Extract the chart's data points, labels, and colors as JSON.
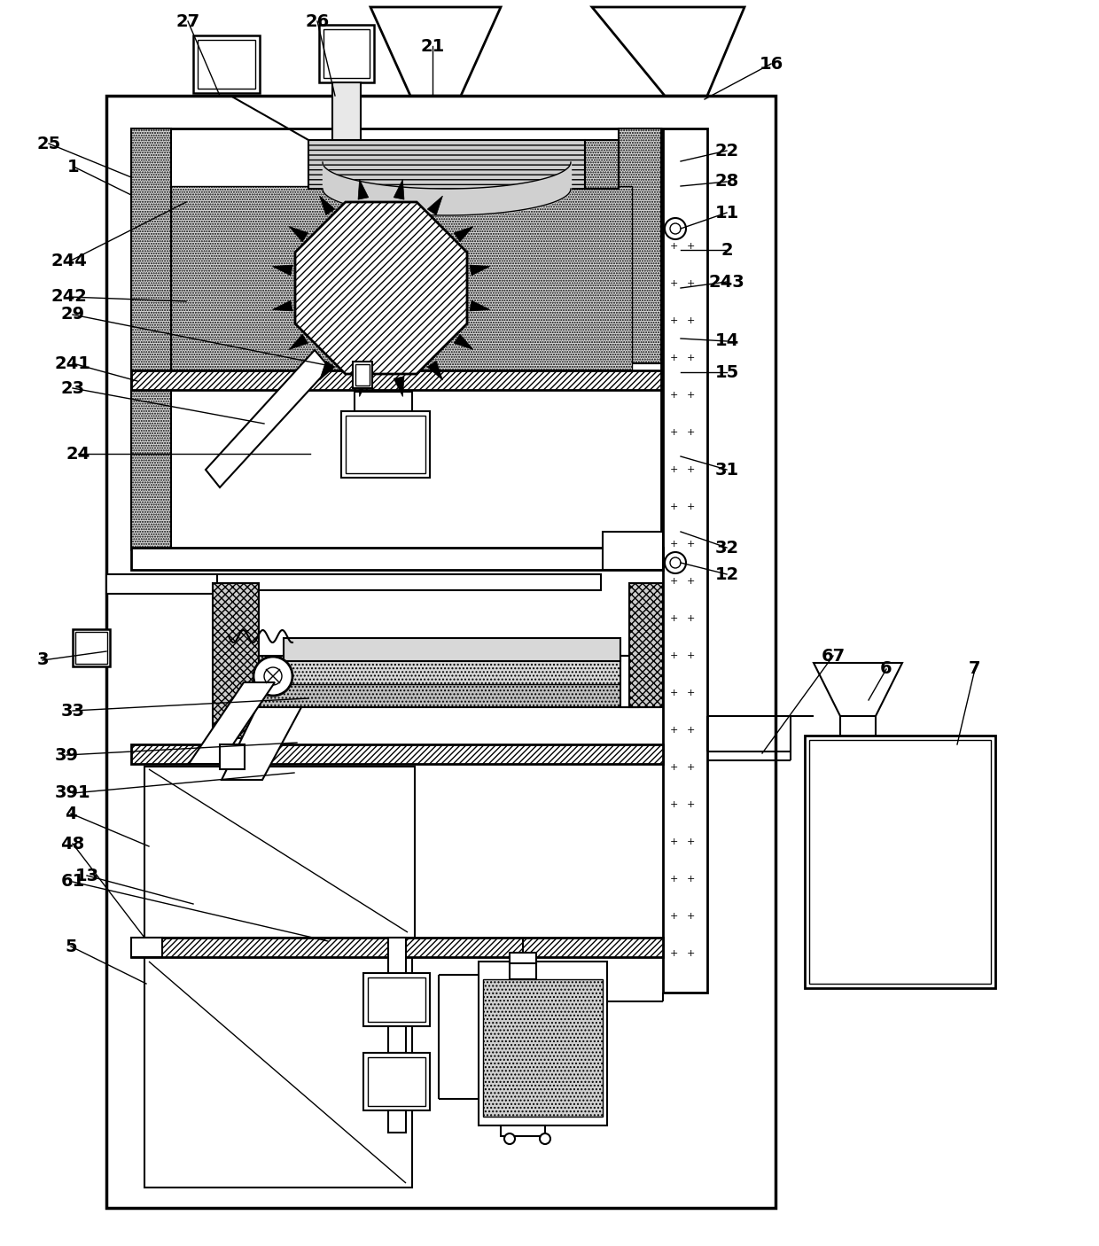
{
  "bg_color": "#ffffff",
  "line_color": "#000000",
  "figsize": [
    12.4,
    14.06
  ],
  "dpi": 100,
  "label_data": [
    [
      "1",
      83,
      188,
      148,
      220
    ],
    [
      "2",
      820,
      282,
      768,
      282
    ],
    [
      "3",
      48,
      745,
      120,
      735
    ],
    [
      "4",
      80,
      918,
      168,
      955
    ],
    [
      "5",
      80,
      1068,
      165,
      1110
    ],
    [
      "6",
      1000,
      755,
      980,
      790
    ],
    [
      "7",
      1100,
      755,
      1080,
      840
    ],
    [
      "11",
      820,
      240,
      768,
      258
    ],
    [
      "12",
      820,
      648,
      768,
      635
    ],
    [
      "13",
      98,
      988,
      218,
      1020
    ],
    [
      "14",
      820,
      385,
      768,
      382
    ],
    [
      "15",
      820,
      420,
      768,
      420
    ],
    [
      "16",
      870,
      72,
      795,
      112
    ],
    [
      "21",
      488,
      52,
      488,
      108
    ],
    [
      "22",
      820,
      170,
      768,
      182
    ],
    [
      "23",
      82,
      438,
      298,
      478
    ],
    [
      "24",
      88,
      512,
      350,
      512
    ],
    [
      "25",
      55,
      162,
      148,
      200
    ],
    [
      "26",
      358,
      24,
      378,
      108
    ],
    [
      "27",
      212,
      24,
      248,
      108
    ],
    [
      "28",
      820,
      205,
      768,
      210
    ],
    [
      "29",
      82,
      355,
      368,
      412
    ],
    [
      "31",
      820,
      530,
      768,
      515
    ],
    [
      "32",
      820,
      618,
      768,
      600
    ],
    [
      "33",
      82,
      802,
      348,
      788
    ],
    [
      "39",
      75,
      852,
      335,
      838
    ],
    [
      "391",
      82,
      895,
      332,
      872
    ],
    [
      "48",
      82,
      952,
      163,
      1058
    ],
    [
      "61",
      82,
      995,
      370,
      1062
    ],
    [
      "67",
      940,
      740,
      860,
      850
    ],
    [
      "241",
      82,
      410,
      155,
      430
    ],
    [
      "242",
      78,
      335,
      210,
      340
    ],
    [
      "243",
      820,
      318,
      768,
      325
    ],
    [
      "244",
      78,
      295,
      210,
      228
    ]
  ]
}
